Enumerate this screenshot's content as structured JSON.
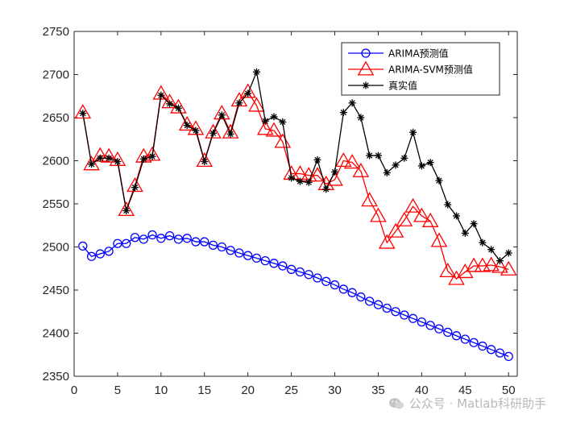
{
  "chart_data": {
    "type": "line",
    "title": "",
    "xlabel": "",
    "ylabel": "",
    "xlim": [
      0,
      51
    ],
    "ylim": [
      2350,
      2750
    ],
    "xticks": [
      0,
      5,
      10,
      15,
      20,
      25,
      30,
      35,
      40,
      45,
      50
    ],
    "yticks": [
      2350,
      2400,
      2450,
      2500,
      2550,
      2600,
      2650,
      2700,
      2750
    ],
    "grid": false,
    "legend_position": "top-right",
    "x": [
      1,
      2,
      3,
      4,
      5,
      6,
      7,
      8,
      9,
      10,
      11,
      12,
      13,
      14,
      15,
      16,
      17,
      18,
      19,
      20,
      21,
      22,
      23,
      24,
      25,
      26,
      27,
      28,
      29,
      30,
      31,
      32,
      33,
      34,
      35,
      36,
      37,
      38,
      39,
      40,
      41,
      42,
      43,
      44,
      45,
      46,
      47,
      48,
      49,
      50
    ],
    "series": [
      {
        "name": "ARIMA预测值",
        "color": "#0000ff",
        "marker": "circle",
        "values": [
          2501,
          2489,
          2492,
          2495,
          2504,
          2504,
          2511,
          2509,
          2514,
          2510,
          2513,
          2509,
          2510,
          2506,
          2506,
          2502,
          2500,
          2496,
          2493,
          2490,
          2487,
          2484,
          2481,
          2478,
          2474,
          2471,
          2468,
          2464,
          2460,
          2456,
          2451,
          2447,
          2442,
          2437,
          2433,
          2429,
          2425,
          2421,
          2417,
          2413,
          2409,
          2405,
          2401,
          2397,
          2393,
          2389,
          2385,
          2381,
          2377,
          2373
        ]
      },
      {
        "name": "ARIMA-SVM预测值",
        "color": "#ff0000",
        "marker": "triangle",
        "values": [
          2656,
          2596,
          2606,
          2605,
          2601,
          2543,
          2571,
          2605,
          2607,
          2678,
          2668,
          2662,
          2642,
          2637,
          2600,
          2633,
          2655,
          2633,
          2670,
          2680,
          2664,
          2637,
          2635,
          2622,
          2585,
          2585,
          2583,
          2583,
          2573,
          2578,
          2600,
          2598,
          2588,
          2554,
          2536,
          2505,
          2518,
          2531,
          2547,
          2536,
          2530,
          2507,
          2472,
          2463,
          2471,
          2478,
          2478,
          2479,
          2477,
          2474
        ]
      },
      {
        "name": "真实值",
        "color": "#000000",
        "marker": "asterisk",
        "values": [
          2655,
          2596,
          2603,
          2603,
          2599,
          2542,
          2569,
          2602,
          2605,
          2676,
          2666,
          2661,
          2641,
          2635,
          2599,
          2632,
          2653,
          2631,
          2667,
          2678,
          2703,
          2646,
          2651,
          2645,
          2580,
          2576,
          2575,
          2601,
          2567,
          2587,
          2656,
          2667,
          2650,
          2606,
          2606,
          2586,
          2595,
          2603,
          2633,
          2594,
          2598,
          2577,
          2549,
          2536,
          2516,
          2527,
          2505,
          2497,
          2484,
          2493
        ]
      }
    ]
  },
  "watermark": {
    "icon": "wechat-icon",
    "text": "公众号 · Matlab科研助手"
  }
}
